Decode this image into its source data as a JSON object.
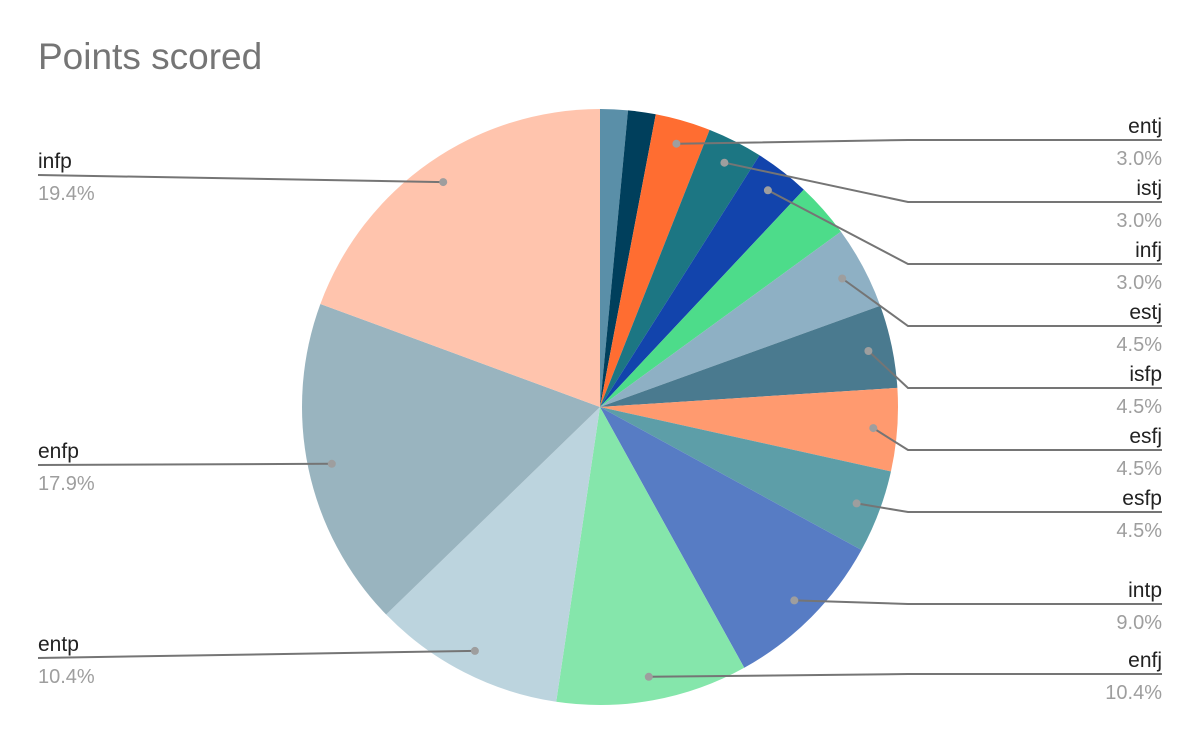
{
  "chart_data": {
    "type": "pie",
    "title": "Points scored",
    "start_angle_deg": 0,
    "direction": "clockwise",
    "slices": [
      {
        "label": "",
        "value": 1.5,
        "percent_label": "",
        "color": "#5a8fa8"
      },
      {
        "label": "",
        "value": 1.5,
        "percent_label": "",
        "color": "#003f5c"
      },
      {
        "label": "entj",
        "value": 3.0,
        "percent_label": "3.0%",
        "color": "#ff6d31"
      },
      {
        "label": "istj",
        "value": 3.0,
        "percent_label": "3.0%",
        "color": "#1c7683"
      },
      {
        "label": "infj",
        "value": 3.0,
        "percent_label": "3.0%",
        "color": "#1244ac"
      },
      {
        "label": "",
        "value": 3.0,
        "percent_label": "",
        "color": "#4ddc8a"
      },
      {
        "label": "estj",
        "value": 4.5,
        "percent_label": "4.5%",
        "color": "#8eb0c4"
      },
      {
        "label": "isfp",
        "value": 4.5,
        "percent_label": "4.5%",
        "color": "#4a7a8f"
      },
      {
        "label": "esfj",
        "value": 4.5,
        "percent_label": "4.5%",
        "color": "#ff9a6f"
      },
      {
        "label": "esfp",
        "value": 4.5,
        "percent_label": "4.5%",
        "color": "#5d9ea8"
      },
      {
        "label": "intp",
        "value": 9.0,
        "percent_label": "9.0%",
        "color": "#577cc4"
      },
      {
        "label": "enfj",
        "value": 10.4,
        "percent_label": "10.4%",
        "color": "#85e6ab"
      },
      {
        "label": "entp",
        "value": 10.4,
        "percent_label": "10.4%",
        "color": "#bcd4de"
      },
      {
        "label": "enfp",
        "value": 17.9,
        "percent_label": "17.9%",
        "color": "#99b4bf"
      },
      {
        "label": "infp",
        "value": 19.4,
        "percent_label": "19.4%",
        "color": "#ffc4ad"
      }
    ],
    "legend": "none",
    "label_style": "callout lines with name and percentage"
  }
}
